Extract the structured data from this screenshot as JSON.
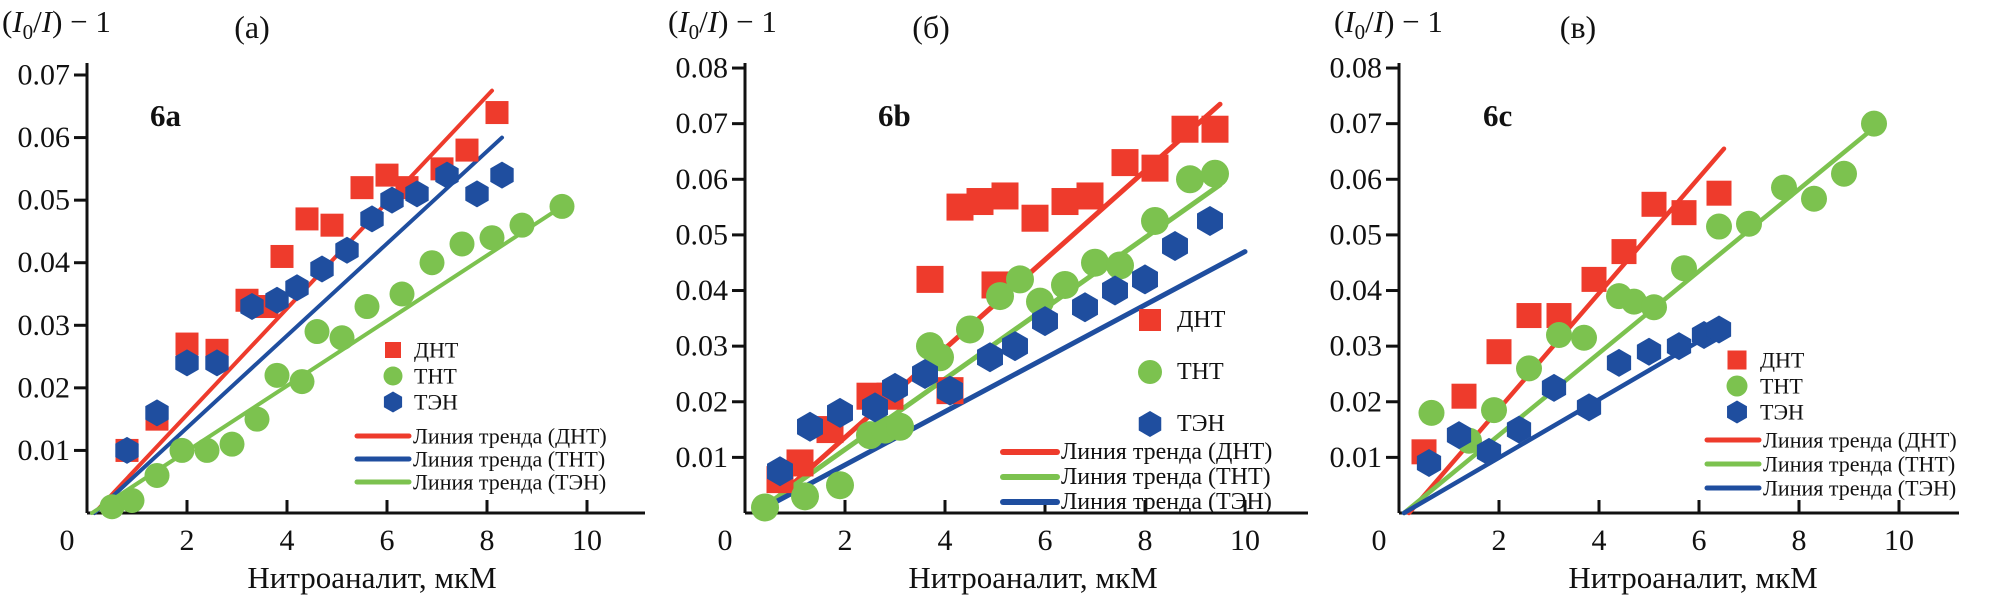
{
  "figure": {
    "background": "#ffffff"
  },
  "chart_data": [
    {
      "id": "a",
      "type": "scatter",
      "panel_label": "(а)",
      "inner_label": "6a",
      "y_axis_title_parts": [
        {
          "text": "(",
          "style": "normal"
        },
        {
          "text": "I",
          "style": "italic"
        },
        {
          "text": "0",
          "style": "sub"
        },
        {
          "text": "/",
          "style": "normal"
        },
        {
          "text": "I",
          "style": "italic"
        },
        {
          "text": ") − 1",
          "style": "normal"
        }
      ],
      "xlabel": "Нитроаналит, мкМ",
      "xlim": [
        0,
        11.2
      ],
      "ylim": [
        0,
        0.0716
      ],
      "x_tick_values": [
        0,
        2,
        4,
        6,
        8,
        10
      ],
      "x_ticks": [
        "0",
        "2",
        "4",
        "6",
        "8",
        "10"
      ],
      "y_tick_values": [
        0.01,
        0.02,
        0.03,
        0.04,
        0.05,
        0.06,
        0.07
      ],
      "y_ticks": [
        "0.01",
        "0.02",
        "0.03",
        "0.04",
        "0.05",
        "0.06",
        "0.07"
      ],
      "grid": false,
      "legend_position": "inside-right",
      "series": [
        {
          "key": "dnt",
          "name": "ДНТ",
          "marker": "square",
          "color": "#ee3b2c",
          "points": [
            [
              0.8,
              0.01
            ],
            [
              1.4,
              0.015
            ],
            [
              2.0,
              0.027
            ],
            [
              2.6,
              0.026
            ],
            [
              3.2,
              0.034
            ],
            [
              3.6,
              0.033
            ],
            [
              3.9,
              0.041
            ],
            [
              4.4,
              0.047
            ],
            [
              4.9,
              0.046
            ],
            [
              5.5,
              0.052
            ],
            [
              6.0,
              0.054
            ],
            [
              6.4,
              0.052
            ],
            [
              7.1,
              0.055
            ],
            [
              7.6,
              0.058
            ],
            [
              8.2,
              0.064
            ]
          ]
        },
        {
          "key": "tnt",
          "name": "ТНТ",
          "marker": "circle",
          "color": "#7cc24f",
          "points": [
            [
              0.5,
              0.001
            ],
            [
              0.9,
              0.002
            ],
            [
              1.4,
              0.006
            ],
            [
              1.9,
              0.01
            ],
            [
              2.4,
              0.01
            ],
            [
              2.9,
              0.011
            ],
            [
              3.4,
              0.015
            ],
            [
              3.8,
              0.022
            ],
            [
              4.3,
              0.021
            ],
            [
              4.6,
              0.029
            ],
            [
              5.1,
              0.028
            ],
            [
              5.6,
              0.033
            ],
            [
              6.3,
              0.035
            ],
            [
              6.9,
              0.04
            ],
            [
              7.5,
              0.043
            ],
            [
              8.1,
              0.044
            ],
            [
              8.7,
              0.046
            ],
            [
              9.5,
              0.049
            ]
          ]
        },
        {
          "key": "ten",
          "name": "ТЭН",
          "marker": "hexagon",
          "color": "#1f4e9f",
          "points": [
            [
              0.8,
              0.01
            ],
            [
              1.4,
              0.016
            ],
            [
              2.0,
              0.024
            ],
            [
              2.6,
              0.024
            ],
            [
              3.3,
              0.033
            ],
            [
              3.8,
              0.034
            ],
            [
              4.2,
              0.036
            ],
            [
              4.7,
              0.039
            ],
            [
              5.2,
              0.042
            ],
            [
              5.7,
              0.047
            ],
            [
              6.1,
              0.05
            ],
            [
              6.6,
              0.051
            ],
            [
              7.2,
              0.054
            ],
            [
              7.8,
              0.051
            ],
            [
              8.3,
              0.054
            ]
          ]
        }
      ],
      "trend_lines": [
        {
          "key": "dnt",
          "label": "Линия тренда (ДНТ)",
          "color": "#ee3b2c",
          "x1": 0.15,
          "y1": 0,
          "x2": 8.1,
          "y2": 0.0675
        },
        {
          "key": "tnt",
          "label": "Линия тренда (ТНТ)",
          "color": "#1f4e9f",
          "x1": 0.15,
          "y1": 0,
          "x2": 8.3,
          "y2": 0.06
        },
        {
          "key": "ten",
          "label": "Линия тренда (ТЭН)",
          "color": "#7cc24f",
          "x1": 0.1,
          "y1": 0,
          "x2": 9.6,
          "y2": 0.0495
        }
      ]
    },
    {
      "id": "b",
      "type": "scatter",
      "panel_label": "(б)",
      "inner_label": "6b",
      "y_axis_title_parts": [
        {
          "text": "(",
          "style": "normal"
        },
        {
          "text": "I",
          "style": "italic"
        },
        {
          "text": "0",
          "style": "sub"
        },
        {
          "text": "/",
          "style": "normal"
        },
        {
          "text": "I",
          "style": "italic"
        },
        {
          "text": ") − 1",
          "style": "normal"
        }
      ],
      "xlabel": "Нитроаналит, мкМ",
      "xlim": [
        0,
        11.2
      ],
      "ylim": [
        0,
        0.0809
      ],
      "x_tick_values": [
        0,
        2,
        4,
        6,
        8,
        10
      ],
      "x_ticks": [
        "0",
        "2",
        "4",
        "6",
        "8",
        "10"
      ],
      "y_tick_values": [
        0.01,
        0.02,
        0.03,
        0.04,
        0.05,
        0.06,
        0.07,
        0.08
      ],
      "y_ticks": [
        "0.01",
        "0.02",
        "0.03",
        "0.04",
        "0.05",
        "0.06",
        "0.07",
        "0.08"
      ],
      "grid": false,
      "legend_position": "inside-right",
      "series": [
        {
          "key": "dnt",
          "name": "ДНТ",
          "marker": "square",
          "color": "#ee3b2c",
          "points": [
            [
              0.7,
              0.006
            ],
            [
              1.1,
              0.009
            ],
            [
              1.7,
              0.015
            ],
            [
              2.5,
              0.021
            ],
            [
              2.9,
              0.021
            ],
            [
              3.7,
              0.042
            ],
            [
              4.1,
              0.022
            ],
            [
              4.3,
              0.055
            ],
            [
              4.7,
              0.056
            ],
            [
              5.0,
              0.041
            ],
            [
              5.2,
              0.057
            ],
            [
              5.8,
              0.053
            ],
            [
              6.4,
              0.056
            ],
            [
              6.9,
              0.057
            ],
            [
              7.6,
              0.063
            ],
            [
              8.2,
              0.062
            ],
            [
              8.8,
              0.069
            ],
            [
              9.4,
              0.069
            ]
          ]
        },
        {
          "key": "tnt",
          "name": "ТНТ",
          "marker": "circle",
          "color": "#7cc24f",
          "points": [
            [
              0.4,
              0.001
            ],
            [
              1.2,
              0.003
            ],
            [
              1.9,
              0.005
            ],
            [
              2.5,
              0.014
            ],
            [
              2.8,
              0.015
            ],
            [
              3.1,
              0.0155
            ],
            [
              3.7,
              0.03
            ],
            [
              3.9,
              0.028
            ],
            [
              4.5,
              0.033
            ],
            [
              5.1,
              0.039
            ],
            [
              5.5,
              0.042
            ],
            [
              5.9,
              0.038
            ],
            [
              6.4,
              0.041
            ],
            [
              7.0,
              0.045
            ],
            [
              7.5,
              0.0445
            ],
            [
              8.2,
              0.0525
            ],
            [
              8.9,
              0.06
            ],
            [
              9.4,
              0.061
            ]
          ]
        },
        {
          "key": "ten",
          "name": "ТЭН",
          "marker": "hexagon",
          "color": "#1f4e9f",
          "points": [
            [
              0.7,
              0.0075
            ],
            [
              1.3,
              0.0155
            ],
            [
              1.9,
              0.018
            ],
            [
              2.6,
              0.019
            ],
            [
              3.0,
              0.0225
            ],
            [
              3.6,
              0.025
            ],
            [
              4.1,
              0.022
            ],
            [
              4.9,
              0.028
            ],
            [
              5.4,
              0.03
            ],
            [
              6.0,
              0.0345
            ],
            [
              6.8,
              0.037
            ],
            [
              7.4,
              0.04
            ],
            [
              8.0,
              0.042
            ],
            [
              8.6,
              0.048
            ],
            [
              9.3,
              0.0525
            ]
          ]
        }
      ],
      "trend_lines": [
        {
          "key": "dnt",
          "label": "Линия тренда (ДНТ)",
          "color": "#ee3b2c",
          "x1": 0.3,
          "y1": 0,
          "x2": 9.5,
          "y2": 0.0735
        },
        {
          "key": "tnt",
          "label": "Линия тренда (ТНТ)",
          "color": "#7cc24f",
          "x1": 0.2,
          "y1": 0,
          "x2": 9.5,
          "y2": 0.059
        },
        {
          "key": "ten",
          "label": "Линия тренда (ТЭН)",
          "color": "#1f4e9f",
          "x1": 0.2,
          "y1": 0,
          "x2": 10.0,
          "y2": 0.047
        }
      ]
    },
    {
      "id": "c",
      "type": "scatter",
      "panel_label": "(в)",
      "inner_label": "6c",
      "y_axis_title_parts": [
        {
          "text": "(",
          "style": "normal"
        },
        {
          "text": "I",
          "style": "italic"
        },
        {
          "text": "0",
          "style": "sub"
        },
        {
          "text": "/",
          "style": "normal"
        },
        {
          "text": "I",
          "style": "italic"
        },
        {
          "text": ") − 1",
          "style": "normal"
        }
      ],
      "xlabel": "Нитроаналит, мкМ",
      "xlim": [
        0,
        11.2
      ],
      "ylim": [
        0,
        0.0809
      ],
      "x_tick_values": [
        0,
        2,
        4,
        6,
        8,
        10
      ],
      "x_ticks": [
        "0",
        "2",
        "4",
        "6",
        "8",
        "10"
      ],
      "y_tick_values": [
        0.01,
        0.02,
        0.03,
        0.04,
        0.05,
        0.06,
        0.07,
        0.08
      ],
      "y_ticks": [
        "0.01",
        "0.02",
        "0.03",
        "0.04",
        "0.05",
        "0.06",
        "0.07",
        "0.08"
      ],
      "grid": false,
      "legend_position": "inside-right",
      "series": [
        {
          "key": "dnt",
          "name": "ДНТ",
          "marker": "square",
          "color": "#ee3b2c",
          "points": [
            [
              0.5,
              0.011
            ],
            [
              1.3,
              0.021
            ],
            [
              2.0,
              0.029
            ],
            [
              2.6,
              0.0355
            ],
            [
              3.2,
              0.0355
            ],
            [
              3.9,
              0.042
            ],
            [
              4.5,
              0.047
            ],
            [
              5.1,
              0.0555
            ],
            [
              5.7,
              0.054
            ],
            [
              6.4,
              0.0575
            ]
          ]
        },
        {
          "key": "tnt",
          "name": "ТНТ",
          "marker": "circle",
          "color": "#7cc24f",
          "points": [
            [
              0.65,
              0.018
            ],
            [
              1.4,
              0.013
            ],
            [
              1.9,
              0.0185
            ],
            [
              2.6,
              0.026
            ],
            [
              3.2,
              0.032
            ],
            [
              3.7,
              0.0315
            ],
            [
              4.4,
              0.039
            ],
            [
              4.7,
              0.038
            ],
            [
              5.1,
              0.037
            ],
            [
              5.7,
              0.044
            ],
            [
              6.4,
              0.0515
            ],
            [
              7.0,
              0.052
            ],
            [
              7.7,
              0.0585
            ],
            [
              8.3,
              0.0565
            ],
            [
              8.9,
              0.061
            ],
            [
              9.5,
              0.07
            ]
          ]
        },
        {
          "key": "ten",
          "name": "ТЭН",
          "marker": "hexagon",
          "color": "#1f4e9f",
          "points": [
            [
              0.6,
              0.009
            ],
            [
              1.2,
              0.014
            ],
            [
              1.8,
              0.011
            ],
            [
              2.4,
              0.015
            ],
            [
              3.1,
              0.0225
            ],
            [
              3.8,
              0.019
            ],
            [
              4.4,
              0.027
            ],
            [
              5.0,
              0.029
            ],
            [
              5.6,
              0.03
            ],
            [
              6.1,
              0.032
            ],
            [
              6.4,
              0.033
            ]
          ]
        }
      ],
      "trend_lines": [
        {
          "key": "dnt",
          "label": "Линия тренда (ДНТ)",
          "color": "#ee3b2c",
          "x1": 0.2,
          "y1": 0,
          "x2": 6.5,
          "y2": 0.0655
        },
        {
          "key": "tnt",
          "label": "Линия тренда (ТНТ)",
          "color": "#7cc24f",
          "x1": 0.1,
          "y1": 0,
          "x2": 9.6,
          "y2": 0.07
        },
        {
          "key": "ten",
          "label": "Линия тренда (ТЭН)",
          "color": "#1f4e9f",
          "x1": 0.1,
          "y1": 0,
          "x2": 6.5,
          "y2": 0.0335
        }
      ]
    }
  ]
}
